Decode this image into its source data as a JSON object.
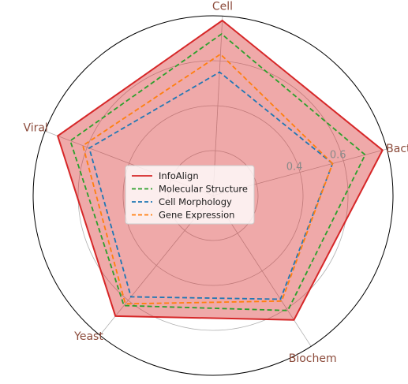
{
  "chart_data": {
    "type": "radar",
    "categories": [
      "Bacterial",
      "Cell",
      "Viral",
      "Yeast",
      "Biochem"
    ],
    "rlim": [
      0,
      0.8
    ],
    "ticks": [
      0.2,
      0.4,
      0.6
    ],
    "tick_labels": [
      "",
      "0.4",
      "0.6"
    ],
    "grid": true,
    "legend_position": "center",
    "series": [
      {
        "name": "InfoAlign",
        "values": [
          0.78,
          0.78,
          0.74,
          0.69,
          0.66
        ],
        "color": "#d62728",
        "dash": "solid",
        "filled": true
      },
      {
        "name": "Molecular Structure",
        "values": [
          0.7,
          0.72,
          0.68,
          0.63,
          0.61
        ],
        "color": "#2ca02c",
        "dash": "dashed"
      },
      {
        "name": "Cell Morphology",
        "values": [
          0.55,
          0.55,
          0.59,
          0.58,
          0.55
        ],
        "color": "#1f77b4",
        "dash": "dashed"
      },
      {
        "name": "Gene Expression",
        "values": [
          0.55,
          0.63,
          0.62,
          0.62,
          0.56
        ],
        "color": "#ff7f0e",
        "dash": "dashed"
      }
    ],
    "fill_color": "#d62728"
  }
}
